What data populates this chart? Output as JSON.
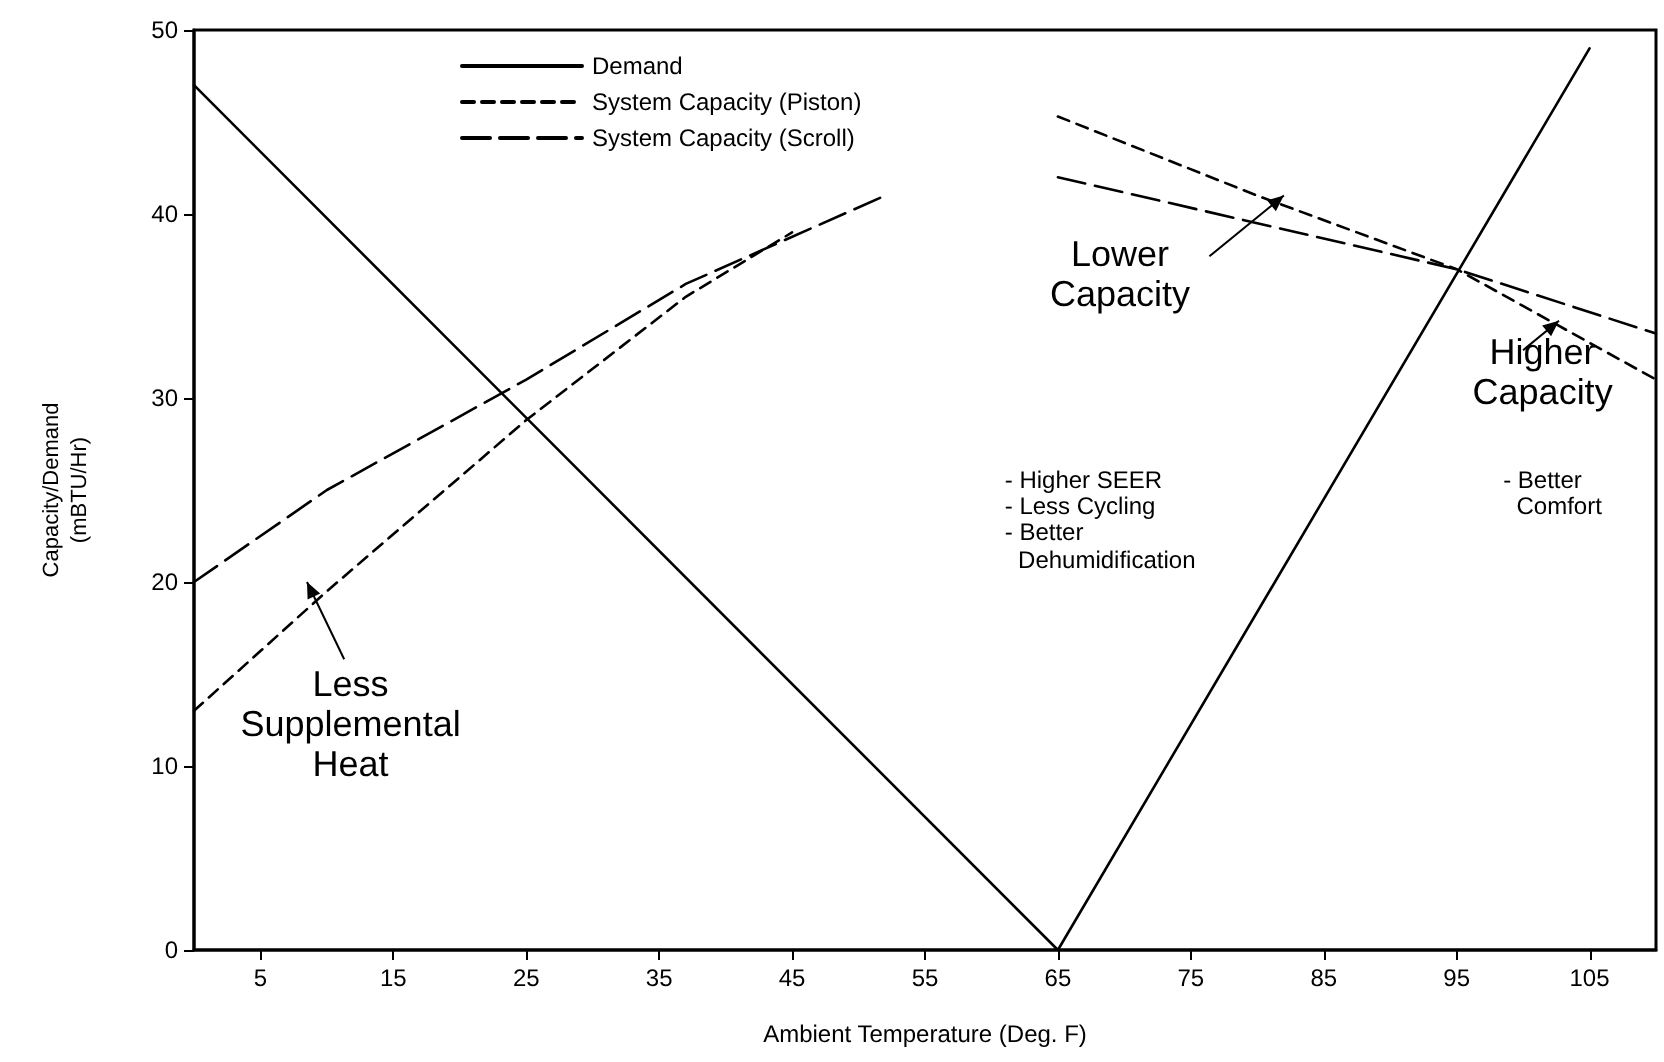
{
  "chart_data": {
    "type": "line",
    "xlabel": "Ambient Temperature (Deg. F)",
    "ylabel": "Capacity/Demand\n(mBTU/Hr)",
    "xlim": [
      0,
      110
    ],
    "xticks": [
      5,
      15,
      25,
      35,
      45,
      55,
      65,
      75,
      85,
      95,
      105
    ],
    "ylim": [
      0,
      50
    ],
    "yticks": [
      0,
      10,
      20,
      30,
      40,
      50
    ],
    "grid": false,
    "legend": "top left",
    "marker": "none",
    "series": [
      {
        "name": "Demand",
        "color": "#000000",
        "line_style": "solid",
        "x": [
          0,
          65,
          105
        ],
        "values": [
          47,
          0,
          49
        ]
      },
      {
        "name": "System Capacity (Piston)",
        "color": "#000000",
        "line_style": "dashed",
        "x": [
          0,
          10,
          25,
          37,
          45,
          55,
          65,
          80,
          95,
          110
        ],
        "values": [
          13,
          19.5,
          28.8,
          35.5,
          39,
          null,
          45.3,
          41,
          37,
          31
        ]
      },
      {
        "name": "System Capacity (Scroll)",
        "color": "#000000",
        "line_style": "long-dash",
        "x": [
          0,
          10,
          25,
          37,
          52,
          58,
          65,
          80,
          95,
          110
        ],
        "values": [
          20,
          25,
          31,
          36.2,
          41,
          null,
          42,
          39.5,
          37,
          33.5
        ]
      }
    ],
    "annotations": [
      "Less\nSupplemental\nHeat",
      "Lower\nCapacity",
      "- Higher SEER\n- Less Cycling\n- Better\n  Dehumidification",
      "Higher\nCapacity",
      "- Better\n  Comfort"
    ]
  }
}
